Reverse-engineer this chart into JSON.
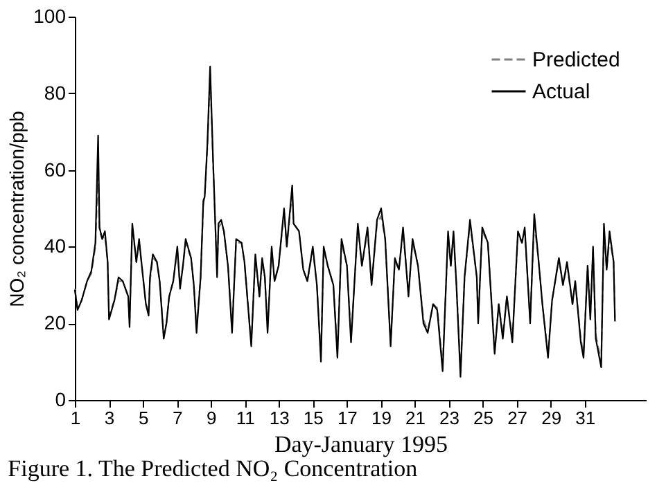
{
  "chart_data": {
    "type": "line",
    "xlabel": "Day-January 1995",
    "ylabel": "NO₂ concentration/ppb",
    "x": [
      1,
      1.16,
      1.4,
      1.72,
      1.97,
      2.21,
      2.37,
      2.45,
      2.61,
      2.77,
      2.93,
      3.01,
      3.33,
      3.57,
      3.82,
      4.14,
      4.22,
      4.38,
      4.62,
      4.78,
      4.94,
      5.18,
      5.34,
      5.42,
      5.59,
      5.83,
      5.99,
      6.23,
      6.39,
      6.55,
      6.79,
      7.03,
      7.19,
      7.36,
      7.52,
      7.84,
      8.0,
      8.16,
      8.4,
      8.56,
      8.64,
      8.8,
      8.96,
      9.13,
      9.37,
      9.45,
      9.61,
      9.77,
      10.01,
      10.25,
      10.49,
      10.81,
      10.98,
      11.38,
      11.62,
      11.86,
      12.02,
      12.18,
      12.34,
      12.58,
      12.75,
      12.99,
      13.31,
      13.47,
      13.79,
      13.87,
      14.19,
      14.44,
      14.68,
      15.0,
      15.24,
      15.48,
      15.64,
      15.88,
      16.21,
      16.45,
      16.69,
      17.01,
      17.25,
      17.65,
      17.89,
      18.22,
      18.46,
      18.78,
      19.02,
      19.26,
      19.58,
      19.83,
      20.07,
      20.31,
      20.63,
      20.87,
      21.19,
      21.51,
      21.76,
      22.08,
      22.32,
      22.64,
      22.96,
      23.12,
      23.28,
      23.45,
      23.69,
      23.93,
      24.25,
      24.65,
      24.73,
      24.97,
      25.3,
      25.7,
      25.94,
      26.18,
      26.42,
      26.74,
      27.07,
      27.31,
      27.47,
      27.79,
      28.03,
      28.27,
      28.51,
      28.84,
      29.08,
      29.48,
      29.72,
      29.96,
      30.28,
      30.44,
      30.77,
      30.93,
      31.17,
      31.33,
      31.49,
      31.65,
      31.97,
      32.13,
      32.29,
      32.46,
      32.7,
      32.78
    ],
    "series": [
      {
        "name": "Predicted",
        "color": "#808080",
        "line_style": "dashed",
        "values": [
          29,
          24,
          26,
          31,
          33,
          40,
          60,
          44,
          42,
          43,
          36,
          22,
          26,
          31,
          31,
          27,
          20,
          45,
          36,
          41,
          35,
          25,
          23,
          31,
          37,
          36,
          31,
          17,
          20,
          27,
          31,
          39,
          30,
          35,
          41,
          37,
          30,
          19,
          32,
          51,
          53,
          66,
          85,
          62,
          33,
          45,
          46,
          44,
          35,
          19,
          41,
          41,
          36,
          15,
          37,
          27,
          36,
          32,
          19,
          39,
          31,
          35,
          49,
          40,
          54,
          46,
          44,
          34,
          31,
          39,
          30,
          12,
          39,
          35,
          30,
          13,
          41,
          35,
          16,
          45,
          35,
          44,
          30,
          46,
          48,
          42,
          15,
          36,
          34,
          44,
          28,
          41,
          35,
          21,
          18,
          25,
          24,
          9,
          43,
          35,
          43,
          30,
          8,
          32,
          46,
          32,
          21,
          44,
          41,
          13,
          25,
          17,
          27,
          16,
          43,
          41,
          44,
          21,
          46,
          37,
          25,
          12,
          26,
          37,
          30,
          35,
          25,
          31,
          16,
          12,
          35,
          22,
          39,
          17,
          10,
          44,
          34,
          42,
          36,
          21
        ]
      },
      {
        "name": "Actual",
        "color": "#000000",
        "line_style": "solid",
        "values": [
          28.7,
          23.5,
          26,
          31,
          33.6,
          41,
          69,
          45,
          42,
          44,
          36,
          21,
          26,
          32,
          31,
          27,
          19,
          46,
          36,
          42,
          35,
          25,
          22,
          32,
          38,
          36,
          31,
          16,
          20,
          27,
          31,
          40,
          29,
          35,
          42,
          37,
          30,
          17.5,
          32,
          52,
          53,
          67,
          87,
          63,
          32,
          46,
          47,
          44,
          35,
          17.5,
          42,
          41,
          36,
          14,
          38,
          27,
          37,
          32,
          17.5,
          40,
          31,
          35,
          50,
          40,
          56,
          46,
          44,
          34,
          31,
          40,
          30,
          10,
          40,
          35,
          30,
          11,
          42,
          35,
          15,
          46,
          35,
          45,
          30,
          47,
          50,
          42,
          14,
          37,
          34,
          45,
          27,
          42,
          35,
          20,
          17.5,
          25,
          23.5,
          7.5,
          44,
          35,
          44,
          30,
          6,
          32,
          47,
          32,
          20,
          45,
          41,
          12,
          25,
          16,
          27,
          15,
          44,
          41,
          45,
          20,
          48.5,
          37,
          25,
          11,
          26,
          37,
          30,
          36,
          25,
          31,
          15,
          11,
          35,
          21,
          40,
          16,
          8.5,
          46,
          34,
          44,
          36,
          20.5
        ]
      }
    ],
    "xlim": [
      1,
      34.6
    ],
    "xticks": [
      1,
      3,
      5,
      7,
      9,
      11,
      13,
      15,
      17,
      19,
      21,
      23,
      25,
      27,
      29,
      31
    ],
    "ylim": [
      0,
      100
    ],
    "yticks": [
      0,
      20,
      40,
      60,
      80,
      100
    ],
    "legend": "top right",
    "grid": false,
    "annotations": [
      "Figure 1. The Predicted NO₂ Concentration"
    ]
  }
}
